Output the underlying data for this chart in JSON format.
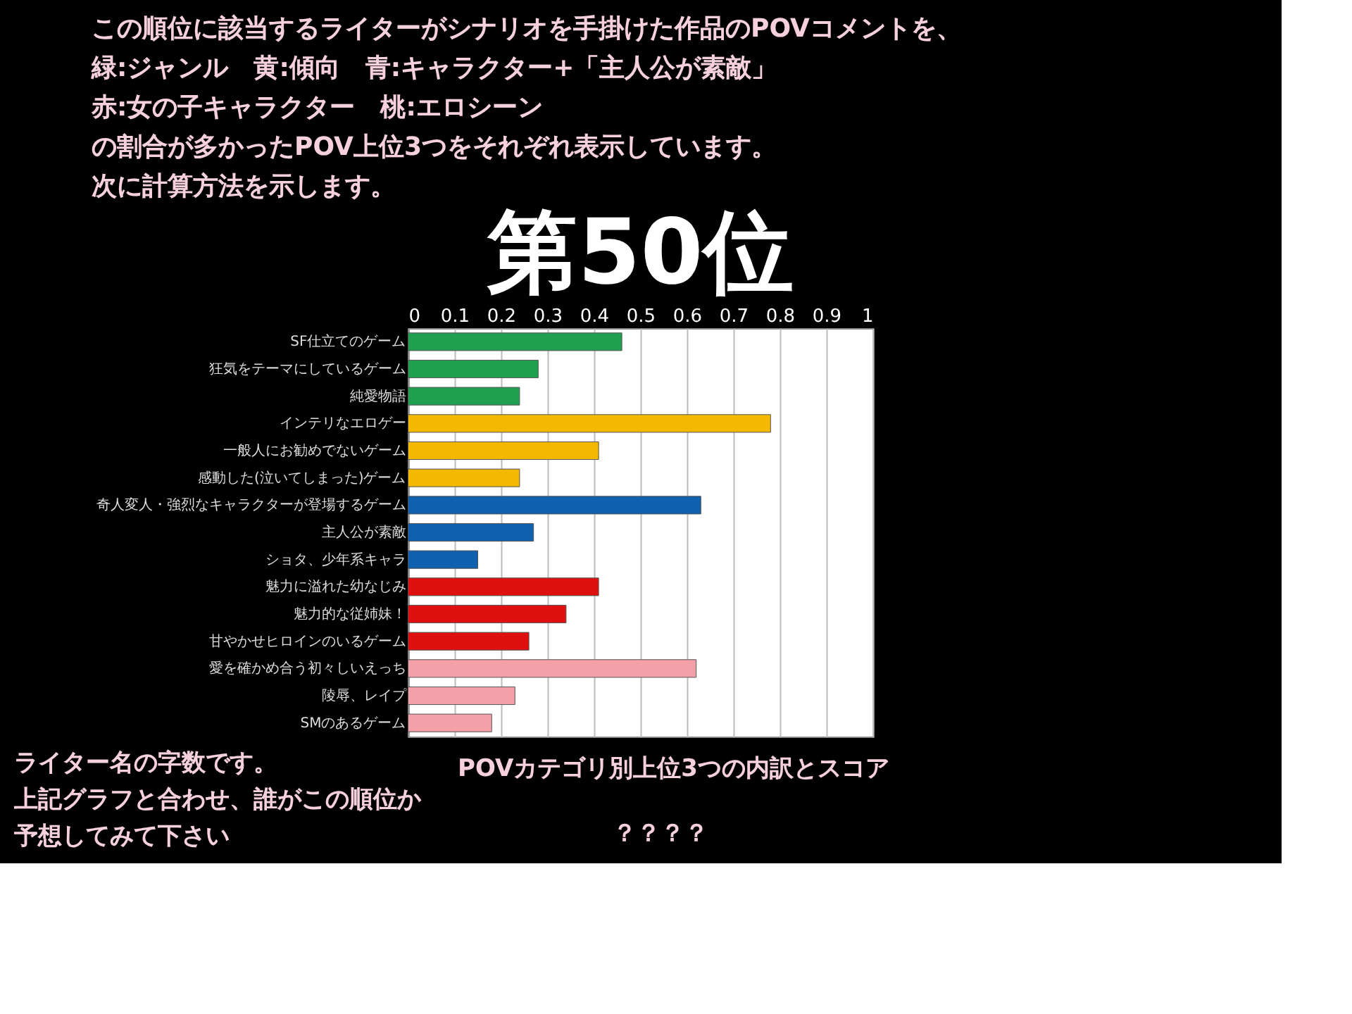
{
  "chart_data": {
    "type": "bar",
    "orientation": "horizontal",
    "title": "第50位",
    "categories": [
      "SF仕立てのゲーム",
      "狂気をテーマにしているゲーム",
      "純愛物語",
      "インテリなエロゲー",
      "一般人にお勧めでないゲーム",
      "感動した(泣いてしまった)ゲーム",
      "奇人変人・強烈なキャラクターが登場するゲーム",
      "主人公が素敵",
      "ショタ、少年系キャラ",
      "魅力に溢れた幼なじみ",
      "魅力的な従姉妹！",
      "甘やかせヒロインのいるゲーム",
      "愛を確かめ合う初々しいえっち",
      "陵辱、レイプ",
      "SMのあるゲーム"
    ],
    "values": [
      0.46,
      0.28,
      0.24,
      0.78,
      0.41,
      0.24,
      0.63,
      0.27,
      0.15,
      0.41,
      0.34,
      0.26,
      0.62,
      0.23,
      0.18
    ],
    "colors": [
      "#1fa050",
      "#1fa050",
      "#1fa050",
      "#f5b800",
      "#f5b800",
      "#f5b800",
      "#1060b0",
      "#1060b0",
      "#1060b0",
      "#e01010",
      "#e01010",
      "#e01010",
      "#f4a0a8",
      "#f4a0a8",
      "#f4a0a8"
    ],
    "xlim": [
      0,
      1
    ],
    "xticks": [
      0,
      0.1,
      0.2,
      0.3,
      0.4,
      0.5,
      0.6,
      0.7,
      0.8,
      0.9,
      1
    ],
    "grid": "x",
    "annotations": [
      "この順位に該当するライターがシナリオを手掛けた作品のPOVコメントを、",
      "緑:ジャンル　黄:傾向　青:キャラクター+「主人公が素敵」",
      "赤:女の子キャラクター　桃:エロシーン",
      "の割合が多かったPOV上位3つをそれぞれ表示しています。",
      "次に計算方法を示します。",
      "ライター名の字数です。",
      "上記グラフと合わせ、誰がこの順位か",
      "予想してみて下さい",
      "POVカテゴリ別上位3つの内訳とスコア",
      "？？？？"
    ]
  }
}
